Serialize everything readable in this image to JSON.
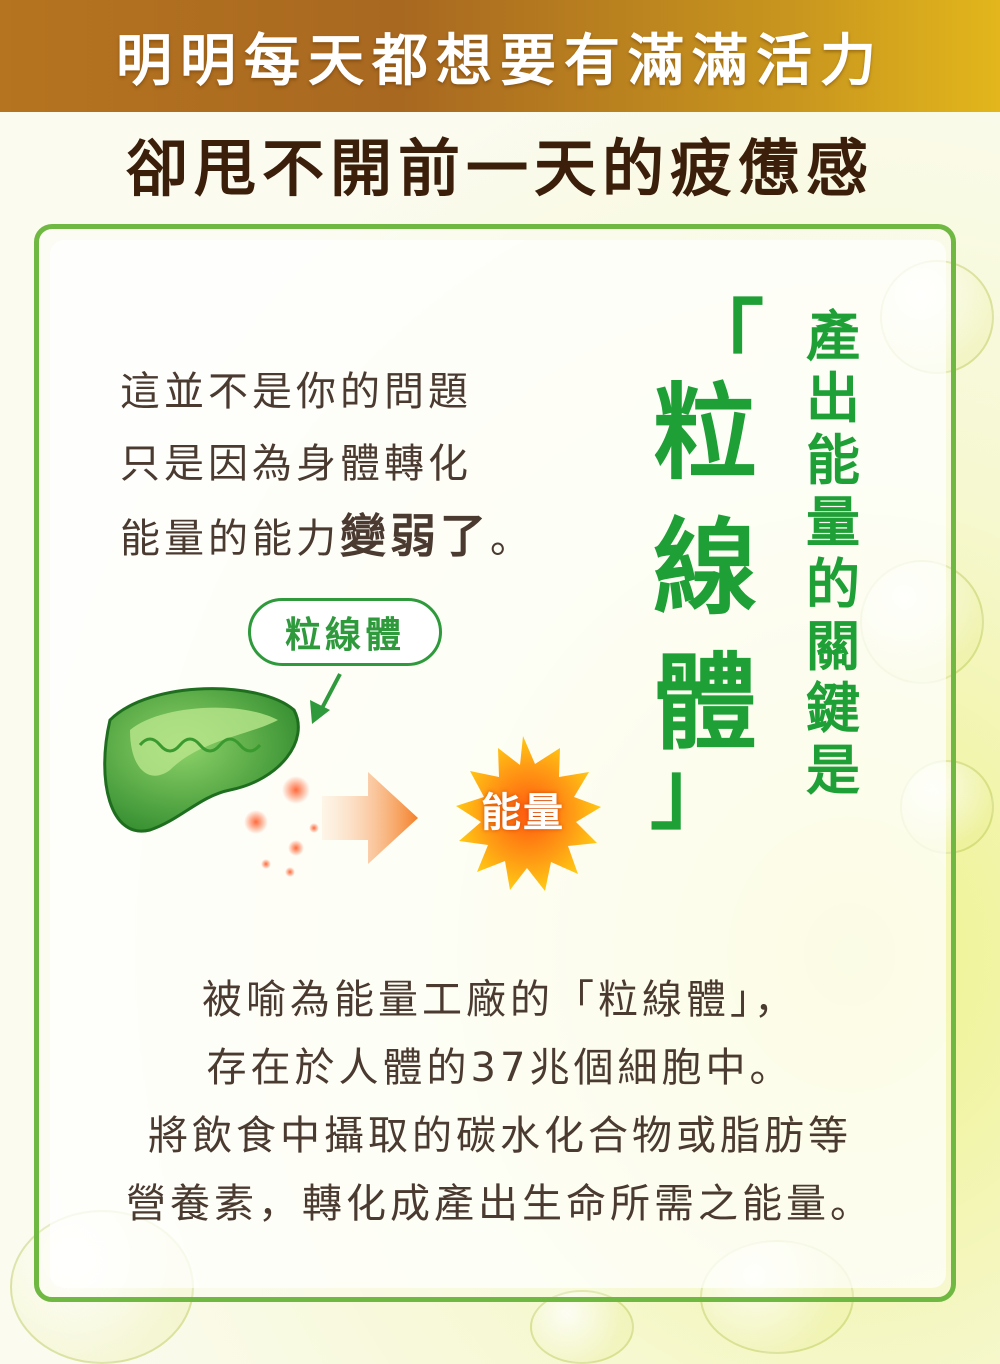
{
  "header": {
    "banner_text": "明明每天都想要有滿滿活力",
    "subtitle": "卻甩不開前一天的疲憊感"
  },
  "intro": {
    "line1": "這並不是你的問題",
    "line2": "只是因為身體轉化",
    "line3_prefix": "能量的能力",
    "line3_strong": "變弱了",
    "line3_suffix": "。"
  },
  "diagram": {
    "tag_label": "粒線體",
    "energy_label": "能量"
  },
  "highlight": {
    "bracket_open": "「",
    "bracket_close": "」",
    "char1": "粒",
    "char2": "線",
    "char3": "體",
    "vertical_text": "產出能量的關鍵是"
  },
  "body": {
    "line1": "被喻為能量工廠的「粒線體」，",
    "line2": "存在於人體的37兆個細胞中。",
    "line3": "將飲食中攝取的碳水化合物或脂肪等",
    "line4": "營養素，轉化成產出生命所需之能量。"
  },
  "colors": {
    "accent_green": "#1ea037",
    "banner_gold": "#b5741f",
    "text_brown": "#4a3a30",
    "subtitle_brown": "#3b1f0a"
  }
}
